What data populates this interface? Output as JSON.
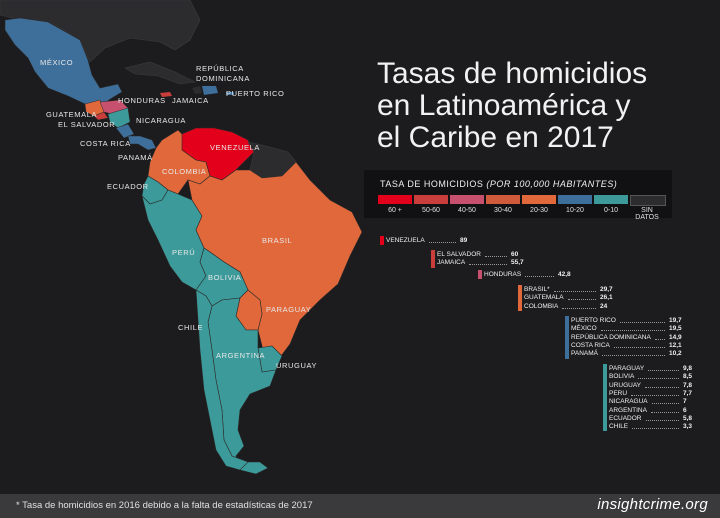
{
  "title": "Tasas de homicidios\nen Latinoamérica y\nel Caribe en 2017",
  "legend": {
    "title_main": "TASA DE HOMICIDIOS",
    "title_unit": "(POR 100,000 HABITANTES)",
    "bins": [
      {
        "label": "60 +",
        "color": "#e3001b"
      },
      {
        "label": "50-60",
        "color": "#c93e3a"
      },
      {
        "label": "40-50",
        "color": "#c8506f"
      },
      {
        "label": "30-40",
        "color": "#cf5a3c"
      },
      {
        "label": "20-30",
        "color": "#e0683a"
      },
      {
        "label": "10-20",
        "color": "#3e6f9a"
      },
      {
        "label": "0-10",
        "color": "#3d9a9a"
      },
      {
        "label": "SIN DATOS",
        "color": "#2c2b2e"
      }
    ]
  },
  "country_labels": {
    "mexico": "MÉXICO",
    "rep_dominicana": "REPÚBLICA\nDOMINICANA",
    "honduras": "HONDURAS",
    "jamaica": "JAMAICA",
    "puerto_rico": "PUERTO RICO",
    "guatemala": "GUATEMALA",
    "el_salvador": "EL SALVADOR",
    "nicaragua": "NICARAGUA",
    "costa_rica": "COSTA RICA",
    "panama": "PANAMÁ",
    "venezuela": "VENEZUELA",
    "colombia": "COLOMBIA",
    "ecuador": "ECUADOR",
    "peru": "PERÚ",
    "brasil": "BRASIL",
    "bolivia": "BOLIVIA",
    "paraguay": "PARAGUAY",
    "chile": "CHILE",
    "argentina": "ARGENTINA",
    "uruguay": "URUGUAY"
  },
  "ranking": [
    {
      "color": "#e3001b",
      "rows": [
        {
          "country": "VENEZUELA",
          "rate": "89"
        }
      ]
    },
    {
      "color": "#c93e3a",
      "rows": [
        {
          "country": "EL SALVADOR",
          "rate": "60"
        },
        {
          "country": "JAMAICA",
          "rate": "55,7"
        }
      ]
    },
    {
      "color": "#c8506f",
      "rows": [
        {
          "country": "HONDURAS",
          "rate": "42,8"
        }
      ]
    },
    {
      "color": "#e0683a",
      "rows": [
        {
          "country": "BRASIL*",
          "rate": "29,7"
        },
        {
          "country": "GUATEMALA",
          "rate": "26,1"
        },
        {
          "country": "COLOMBIA",
          "rate": "24"
        }
      ]
    },
    {
      "color": "#3e6f9a",
      "rows": [
        {
          "country": "PUERTO RICO",
          "rate": "19,7"
        },
        {
          "country": "MÉXICO",
          "rate": "19,5"
        },
        {
          "country": "REPÚBLICA DOMINICANA",
          "rate": "14,9"
        },
        {
          "country": "COSTA RICA",
          "rate": "12,1"
        },
        {
          "country": "PANAMÁ",
          "rate": "10,2"
        }
      ]
    },
    {
      "color": "#3d9a9a",
      "rows": [
        {
          "country": "PARAGUAY",
          "rate": "9,8"
        },
        {
          "country": "BOLIVIA",
          "rate": "8,5"
        },
        {
          "country": "URUGUAY",
          "rate": "7,8"
        },
        {
          "country": "PERU",
          "rate": "7,7"
        },
        {
          "country": "NICARAGUA",
          "rate": "7"
        },
        {
          "country": "ARGENTINA",
          "rate": "6"
        },
        {
          "country": "ECUADOR",
          "rate": "5,8"
        },
        {
          "country": "CHILE",
          "rate": "3,3"
        }
      ]
    }
  ],
  "footnote": "* Tasa de homicidios en 2016 debido a la falta de estadísticas de 2017",
  "credit": "insightcrime.org"
}
